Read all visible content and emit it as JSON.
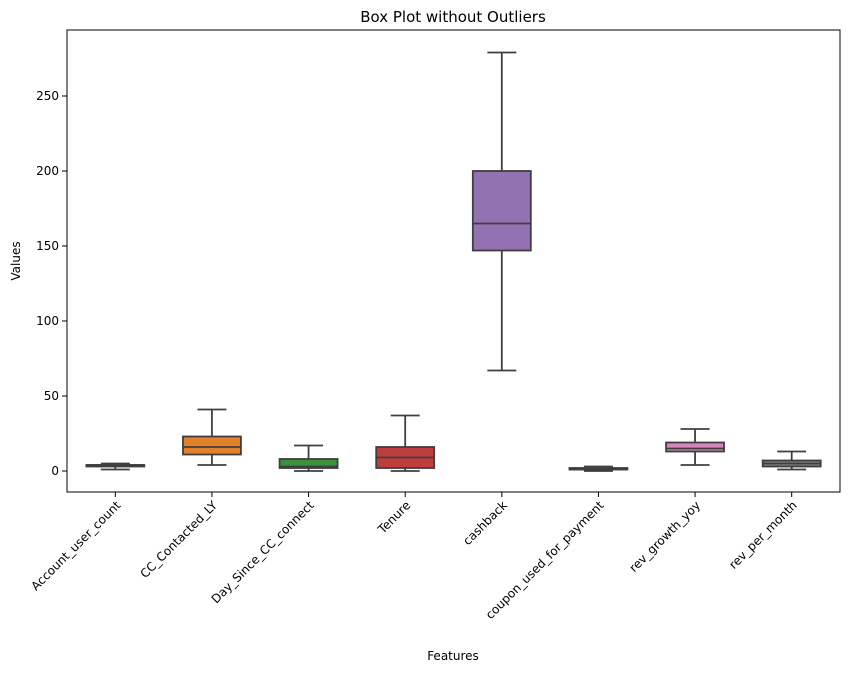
{
  "chart_data": {
    "type": "box",
    "title": "Box Plot without Outliers",
    "xlabel": "Features",
    "ylabel": "Values",
    "ylim": [
      -14,
      294
    ],
    "yticks": [
      0,
      50,
      100,
      150,
      200,
      250
    ],
    "grid": false,
    "legend": "none",
    "categories": [
      "Account_user_count",
      "CC_Contacted_LY",
      "Day_Since_CC_connect",
      "Tenure",
      "cashback",
      "coupon_used_for_payment",
      "rev_growth_yoy",
      "rev_per_month"
    ],
    "colors": [
      "#3274a1",
      "#e1812c",
      "#3a923a",
      "#c03d3e",
      "#9372b2",
      "#845b53",
      "#d684bd",
      "#7f7f7f"
    ],
    "boxes": [
      {
        "whisker_low": 1,
        "q1": 3,
        "median": 4,
        "q3": 4,
        "whisker_high": 5
      },
      {
        "whisker_low": 4,
        "q1": 11,
        "median": 16,
        "q3": 23,
        "whisker_high": 41
      },
      {
        "whisker_low": 0,
        "q1": 2,
        "median": 3,
        "q3": 8,
        "whisker_high": 17
      },
      {
        "whisker_low": 0,
        "q1": 2,
        "median": 9,
        "q3": 16,
        "whisker_high": 37
      },
      {
        "whisker_low": 67,
        "q1": 147,
        "median": 165,
        "q3": 200,
        "whisker_high": 279
      },
      {
        "whisker_low": 0,
        "q1": 1,
        "median": 1,
        "q3": 2,
        "whisker_high": 3
      },
      {
        "whisker_low": 4,
        "q1": 13,
        "median": 15,
        "q3": 19,
        "whisker_high": 28
      },
      {
        "whisker_low": 1,
        "q1": 3,
        "median": 5,
        "q3": 7,
        "whisker_high": 13
      }
    ]
  }
}
